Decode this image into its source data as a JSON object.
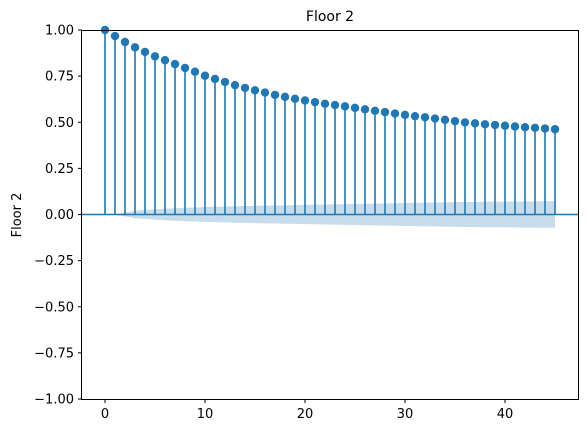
{
  "chart_data": {
    "type": "stem",
    "title": "Floor 2",
    "xlabel": "",
    "ylabel": "Floor 2",
    "xlim": [
      -2.3,
      47.3
    ],
    "ylim": [
      -1.0,
      1.0
    ],
    "xticks": [
      0,
      10,
      20,
      30,
      40
    ],
    "yticks": [
      -1.0,
      -0.75,
      -0.5,
      -0.25,
      0.0,
      0.25,
      0.5,
      0.75,
      1.0
    ],
    "ytick_labels": [
      "−1.00",
      "−0.75",
      "−0.50",
      "−0.25",
      "0.00",
      "0.25",
      "0.50",
      "0.75",
      "1.00"
    ],
    "grid": false,
    "stem_color": "#1f77b4",
    "confidence_band_color": "#1f77b4",
    "lags": [
      0,
      1,
      2,
      3,
      4,
      5,
      6,
      7,
      8,
      9,
      10,
      11,
      12,
      13,
      14,
      15,
      16,
      17,
      18,
      19,
      20,
      21,
      22,
      23,
      24,
      25,
      26,
      27,
      28,
      29,
      30,
      31,
      32,
      33,
      34,
      35,
      36,
      37,
      38,
      39,
      40,
      41,
      42,
      43,
      44,
      45
    ],
    "values": [
      1.0,
      0.967,
      0.935,
      0.906,
      0.881,
      0.857,
      0.836,
      0.815,
      0.794,
      0.774,
      0.752,
      0.735,
      0.718,
      0.701,
      0.686,
      0.673,
      0.661,
      0.648,
      0.638,
      0.627,
      0.618,
      0.609,
      0.6,
      0.593,
      0.586,
      0.578,
      0.57,
      0.562,
      0.555,
      0.547,
      0.54,
      0.533,
      0.527,
      0.52,
      0.513,
      0.506,
      0.499,
      0.494,
      0.489,
      0.485,
      0.481,
      0.477,
      0.473,
      0.47,
      0.466,
      0.462
    ],
    "confidence_upper": [
      0.0,
      0.0,
      0.01,
      0.02,
      0.024,
      0.028,
      0.031,
      0.034,
      0.036,
      0.038,
      0.04,
      0.042,
      0.043,
      0.045,
      0.046,
      0.047,
      0.048,
      0.049,
      0.05,
      0.051,
      0.052,
      0.053,
      0.054,
      0.055,
      0.056,
      0.057,
      0.058,
      0.059,
      0.06,
      0.061,
      0.062,
      0.063,
      0.064,
      0.065,
      0.066,
      0.067,
      0.068,
      0.068,
      0.069,
      0.069,
      0.07,
      0.07,
      0.071,
      0.071,
      0.072,
      0.072
    ]
  }
}
